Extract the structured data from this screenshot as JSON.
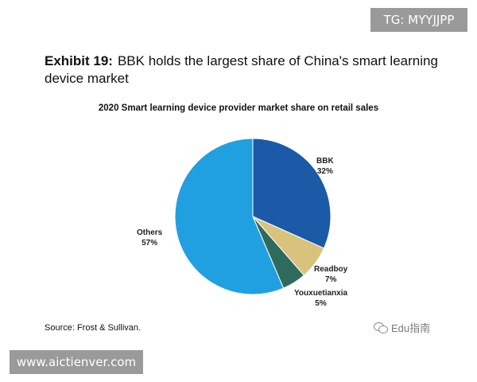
{
  "watermarks": {
    "top_right": "TG: MYYJJPP",
    "bottom_left": "www.aictienver.com",
    "wechat": "Edu指南"
  },
  "exhibit": {
    "label": "Exhibit 19:",
    "title": "BBK holds the largest share of China's smart learning device market"
  },
  "source": "Source: Frost & Sullivan.",
  "chart_data": {
    "type": "pie",
    "title": "2020 Smart learning device provider market share on retail sales",
    "unit": "%",
    "start_angle_deg": 0,
    "direction": "clockwise",
    "slices": [
      {
        "name": "BBK",
        "value": 32,
        "label": "32%",
        "color": "#1a5aa6"
      },
      {
        "name": "Readboy",
        "value": 7,
        "label": "7%",
        "color": "#d9c27c"
      },
      {
        "name": "Youxuetianxia",
        "value": 5,
        "label": "5%",
        "color": "#2e6b5e"
      },
      {
        "name": "Others",
        "value": 57,
        "label": "57%",
        "color": "#21a0e1"
      }
    ]
  }
}
